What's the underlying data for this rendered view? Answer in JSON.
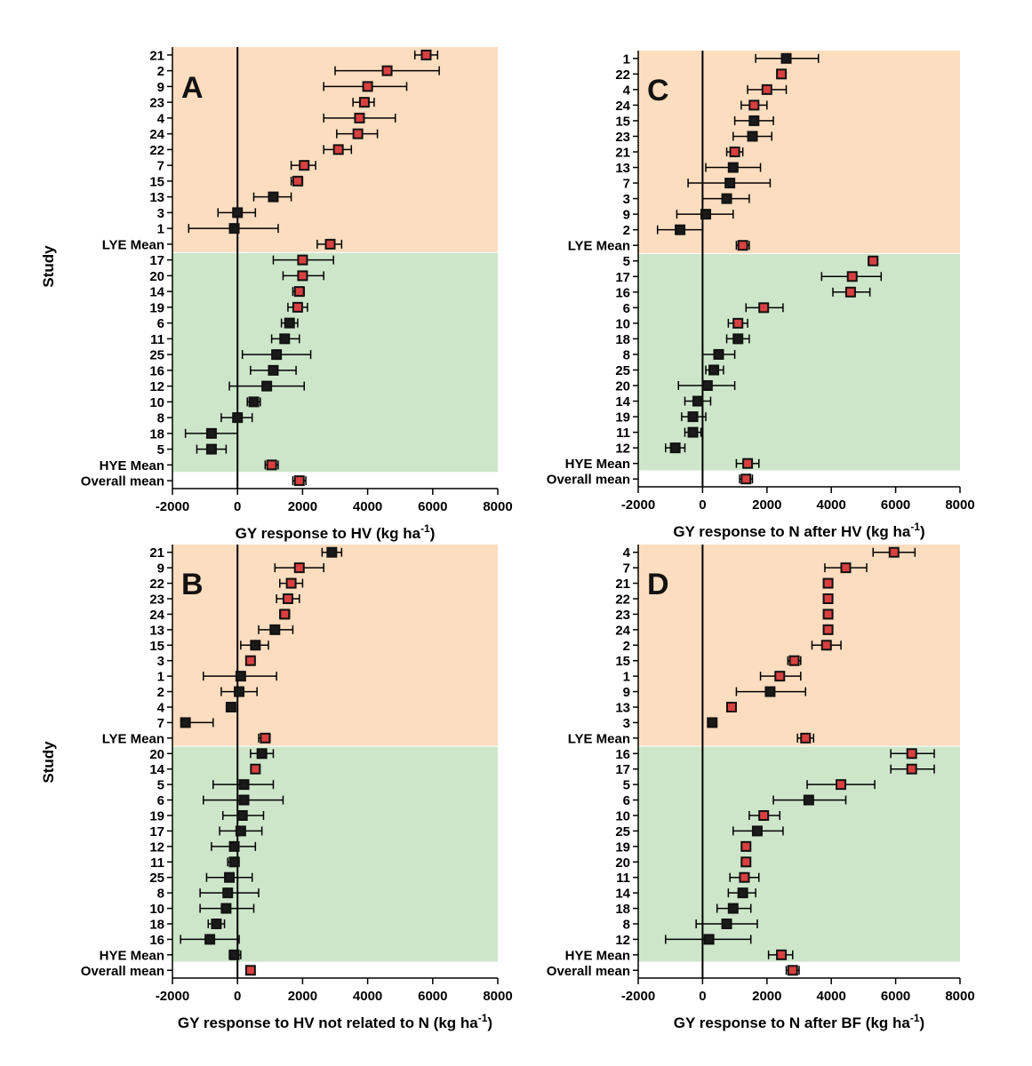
{
  "figure": {
    "y_axis_title": "Study"
  },
  "colors": {
    "lye_band": "#FCDDBF",
    "hye_band": "#CDE6CA",
    "marker_fill_red": "#D94040",
    "marker_fill_black": "#1A1A1A",
    "marker_edge": "#111111"
  },
  "chart_data": [
    {
      "id": "A",
      "type": "forest",
      "panel_label": "A",
      "xlabel": "GY response to HV (kg ha",
      "xlabel_sup": "-1",
      "xlabel_tail": ")",
      "xlim": [
        -2000,
        8000
      ],
      "xticks": [
        -2000,
        0,
        2000,
        4000,
        6000,
        8000
      ],
      "lye_rows": 13,
      "rows": [
        {
          "label": "21",
          "est": 5800,
          "lo": 5450,
          "hi": 6150,
          "marker": "red"
        },
        {
          "label": "2",
          "est": 4600,
          "lo": 3000,
          "hi": 6200,
          "marker": "red"
        },
        {
          "label": "9",
          "est": 4000,
          "lo": 2650,
          "hi": 5200,
          "marker": "red"
        },
        {
          "label": "23",
          "est": 3900,
          "lo": 3550,
          "hi": 4200,
          "marker": "red"
        },
        {
          "label": "4",
          "est": 3750,
          "lo": 2650,
          "hi": 4850,
          "marker": "red"
        },
        {
          "label": "24",
          "est": 3700,
          "lo": 3050,
          "hi": 4300,
          "marker": "red"
        },
        {
          "label": "22",
          "est": 3100,
          "lo": 2650,
          "hi": 3500,
          "marker": "red"
        },
        {
          "label": "7",
          "est": 2050,
          "lo": 1650,
          "hi": 2400,
          "marker": "red"
        },
        {
          "label": "15",
          "est": 1850,
          "lo": 1650,
          "hi": 2000,
          "marker": "red"
        },
        {
          "label": "13",
          "est": 1100,
          "lo": 500,
          "hi": 1650,
          "marker": "black"
        },
        {
          "label": "3",
          "est": 0,
          "lo": -600,
          "hi": 550,
          "marker": "black"
        },
        {
          "label": "1",
          "est": -100,
          "lo": -1500,
          "hi": 1250,
          "marker": "black"
        },
        {
          "label": "LYE Mean",
          "est": 2850,
          "lo": 2450,
          "hi": 3200,
          "marker": "red"
        },
        {
          "label": "17",
          "est": 2000,
          "lo": 1100,
          "hi": 2950,
          "marker": "red"
        },
        {
          "label": "20",
          "est": 2000,
          "lo": 1400,
          "hi": 2650,
          "marker": "red"
        },
        {
          "label": "14",
          "est": 1900,
          "lo": 1700,
          "hi": 2050,
          "marker": "red"
        },
        {
          "label": "19",
          "est": 1850,
          "lo": 1550,
          "hi": 2150,
          "marker": "red"
        },
        {
          "label": "6",
          "est": 1600,
          "lo": 1350,
          "hi": 1850,
          "marker": "black"
        },
        {
          "label": "11",
          "est": 1450,
          "lo": 1050,
          "hi": 1900,
          "marker": "black"
        },
        {
          "label": "25",
          "est": 1200,
          "lo": 150,
          "hi": 2250,
          "marker": "black"
        },
        {
          "label": "16",
          "est": 1100,
          "lo": 400,
          "hi": 1800,
          "marker": "black"
        },
        {
          "label": "12",
          "est": 900,
          "lo": -250,
          "hi": 2050,
          "marker": "black"
        },
        {
          "label": "10",
          "est": 500,
          "lo": 300,
          "hi": 700,
          "marker": "black"
        },
        {
          "label": "8",
          "est": 0,
          "lo": -500,
          "hi": 450,
          "marker": "black"
        },
        {
          "label": "18",
          "est": -800,
          "lo": -1600,
          "hi": 0,
          "marker": "black"
        },
        {
          "label": "5",
          "est": -800,
          "lo": -1250,
          "hi": -350,
          "marker": "black"
        },
        {
          "label": "HYE Mean",
          "est": 1050,
          "lo": 850,
          "hi": 1250,
          "marker": "red"
        },
        {
          "label": "Overall mean",
          "est": 1900,
          "lo": 1700,
          "hi": 2100,
          "marker": "red"
        }
      ]
    },
    {
      "id": "C",
      "type": "forest",
      "panel_label": "C",
      "xlabel": "GY response to N after HV (kg ha",
      "xlabel_sup": "-1",
      "xlabel_tail": ")",
      "xlim": [
        -2000,
        8000
      ],
      "xticks": [
        -2000,
        0,
        2000,
        4000,
        6000,
        8000
      ],
      "lye_rows": 13,
      "rows": [
        {
          "label": "1",
          "est": 2600,
          "lo": 1650,
          "hi": 3600,
          "marker": "black"
        },
        {
          "label": "22",
          "est": 2450,
          "lo": 2350,
          "hi": 2550,
          "marker": "red"
        },
        {
          "label": "4",
          "est": 2000,
          "lo": 1400,
          "hi": 2600,
          "marker": "red"
        },
        {
          "label": "24",
          "est": 1600,
          "lo": 1200,
          "hi": 2000,
          "marker": "red"
        },
        {
          "label": "15",
          "est": 1600,
          "lo": 1000,
          "hi": 2200,
          "marker": "black"
        },
        {
          "label": "23",
          "est": 1550,
          "lo": 950,
          "hi": 2150,
          "marker": "black"
        },
        {
          "label": "21",
          "est": 1000,
          "lo": 750,
          "hi": 1250,
          "marker": "red"
        },
        {
          "label": "13",
          "est": 950,
          "lo": 100,
          "hi": 1800,
          "marker": "black"
        },
        {
          "label": "7",
          "est": 850,
          "lo": -450,
          "hi": 2100,
          "marker": "black"
        },
        {
          "label": "3",
          "est": 750,
          "lo": 0,
          "hi": 1450,
          "marker": "black"
        },
        {
          "label": "9",
          "est": 100,
          "lo": -800,
          "hi": 950,
          "marker": "black"
        },
        {
          "label": "2",
          "est": -700,
          "lo": -1400,
          "hi": 0,
          "marker": "black"
        },
        {
          "label": "LYE Mean",
          "est": 1250,
          "lo": 1050,
          "hi": 1450,
          "marker": "red"
        },
        {
          "label": "5",
          "est": 5300,
          "lo": 5150,
          "hi": 5400,
          "marker": "red"
        },
        {
          "label": "17",
          "est": 4650,
          "lo": 3700,
          "hi": 5550,
          "marker": "red"
        },
        {
          "label": "16",
          "est": 4600,
          "lo": 4050,
          "hi": 5200,
          "marker": "red"
        },
        {
          "label": "6",
          "est": 1900,
          "lo": 1350,
          "hi": 2500,
          "marker": "red"
        },
        {
          "label": "10",
          "est": 1100,
          "lo": 800,
          "hi": 1400,
          "marker": "red"
        },
        {
          "label": "18",
          "est": 1100,
          "lo": 750,
          "hi": 1450,
          "marker": "black"
        },
        {
          "label": "8",
          "est": 500,
          "lo": 0,
          "hi": 1000,
          "marker": "black"
        },
        {
          "label": "25",
          "est": 350,
          "lo": 100,
          "hi": 650,
          "marker": "black"
        },
        {
          "label": "20",
          "est": 150,
          "lo": -750,
          "hi": 1000,
          "marker": "black"
        },
        {
          "label": "14",
          "est": -150,
          "lo": -550,
          "hi": 250,
          "marker": "black"
        },
        {
          "label": "19",
          "est": -300,
          "lo": -650,
          "hi": 100,
          "marker": "black"
        },
        {
          "label": "11",
          "est": -300,
          "lo": -550,
          "hi": -50,
          "marker": "black"
        },
        {
          "label": "12",
          "est": -850,
          "lo": -1150,
          "hi": -550,
          "marker": "black"
        },
        {
          "label": "HYE Mean",
          "est": 1400,
          "lo": 1050,
          "hi": 1750,
          "marker": "red"
        },
        {
          "label": "Overall mean",
          "est": 1350,
          "lo": 1150,
          "hi": 1550,
          "marker": "red"
        }
      ]
    },
    {
      "id": "B",
      "type": "forest",
      "panel_label": "B",
      "xlabel": "GY response to HV not related to N (kg ha",
      "xlabel_sup": "-1",
      "xlabel_tail": ")",
      "xlim": [
        -2000,
        8000
      ],
      "xticks": [
        -2000,
        0,
        2000,
        4000,
        6000,
        8000
      ],
      "lye_rows": 13,
      "rows": [
        {
          "label": "21",
          "est": 2900,
          "lo": 2600,
          "hi": 3200,
          "marker": "black"
        },
        {
          "label": "9",
          "est": 1900,
          "lo": 1150,
          "hi": 2650,
          "marker": "red"
        },
        {
          "label": "22",
          "est": 1650,
          "lo": 1300,
          "hi": 2000,
          "marker": "red"
        },
        {
          "label": "23",
          "est": 1550,
          "lo": 1200,
          "hi": 1900,
          "marker": "red"
        },
        {
          "label": "24",
          "est": 1450,
          "lo": 1300,
          "hi": 1600,
          "marker": "red"
        },
        {
          "label": "13",
          "est": 1150,
          "lo": 650,
          "hi": 1700,
          "marker": "black"
        },
        {
          "label": "15",
          "est": 550,
          "lo": 100,
          "hi": 950,
          "marker": "black"
        },
        {
          "label": "3",
          "est": 400,
          "lo": 300,
          "hi": 500,
          "marker": "red"
        },
        {
          "label": "1",
          "est": 100,
          "lo": -1050,
          "hi": 1200,
          "marker": "black"
        },
        {
          "label": "2",
          "est": 50,
          "lo": -500,
          "hi": 600,
          "marker": "black"
        },
        {
          "label": "4",
          "est": -200,
          "lo": -300,
          "hi": -100,
          "marker": "black"
        },
        {
          "label": "7",
          "est": -1600,
          "lo": -1700,
          "hi": -750,
          "marker": "black"
        },
        {
          "label": "LYE Mean",
          "est": 850,
          "lo": 650,
          "hi": 1000,
          "marker": "red"
        },
        {
          "label": "20",
          "est": 750,
          "lo": 400,
          "hi": 1100,
          "marker": "black"
        },
        {
          "label": "14",
          "est": 550,
          "lo": 450,
          "hi": 650,
          "marker": "red"
        },
        {
          "label": "5",
          "est": 200,
          "lo": -750,
          "hi": 1100,
          "marker": "black"
        },
        {
          "label": "6",
          "est": 200,
          "lo": -1050,
          "hi": 1400,
          "marker": "black"
        },
        {
          "label": "19",
          "est": 150,
          "lo": -450,
          "hi": 800,
          "marker": "black"
        },
        {
          "label": "17",
          "est": 100,
          "lo": -550,
          "hi": 750,
          "marker": "black"
        },
        {
          "label": "12",
          "est": -100,
          "lo": -800,
          "hi": 550,
          "marker": "black"
        },
        {
          "label": "11",
          "est": -100,
          "lo": -300,
          "hi": 50,
          "marker": "black"
        },
        {
          "label": "25",
          "est": -250,
          "lo": -950,
          "hi": 450,
          "marker": "black"
        },
        {
          "label": "8",
          "est": -300,
          "lo": -1150,
          "hi": 650,
          "marker": "black"
        },
        {
          "label": "10",
          "est": -350,
          "lo": -1150,
          "hi": 500,
          "marker": "black"
        },
        {
          "label": "18",
          "est": -650,
          "lo": -900,
          "hi": -400,
          "marker": "black"
        },
        {
          "label": "16",
          "est": -850,
          "lo": -1750,
          "hi": 50,
          "marker": "black"
        },
        {
          "label": "HYE Mean",
          "est": -100,
          "lo": -250,
          "hi": 100,
          "marker": "black"
        },
        {
          "label": "Overall mean",
          "est": 400,
          "lo": 300,
          "hi": 500,
          "marker": "red"
        }
      ]
    },
    {
      "id": "D",
      "type": "forest",
      "panel_label": "D",
      "xlabel": "GY response to N after BF (kg ha",
      "xlabel_sup": "-1",
      "xlabel_tail": ")",
      "xlim": [
        -2000,
        8000
      ],
      "xticks": [
        -2000,
        0,
        2000,
        4000,
        6000,
        8000
      ],
      "lye_rows": 13,
      "rows": [
        {
          "label": "4",
          "est": 5950,
          "lo": 5300,
          "hi": 6600,
          "marker": "red"
        },
        {
          "label": "7",
          "est": 4450,
          "lo": 3800,
          "hi": 5100,
          "marker": "red"
        },
        {
          "label": "21",
          "est": 3900,
          "lo": 3800,
          "hi": 4000,
          "marker": "red"
        },
        {
          "label": "22",
          "est": 3900,
          "lo": 3800,
          "hi": 4000,
          "marker": "red"
        },
        {
          "label": "23",
          "est": 3900,
          "lo": 3800,
          "hi": 4000,
          "marker": "red"
        },
        {
          "label": "24",
          "est": 3900,
          "lo": 3800,
          "hi": 4000,
          "marker": "red"
        },
        {
          "label": "2",
          "est": 3850,
          "lo": 3400,
          "hi": 4300,
          "marker": "red"
        },
        {
          "label": "15",
          "est": 2850,
          "lo": 2650,
          "hi": 3050,
          "marker": "red"
        },
        {
          "label": "1",
          "est": 2400,
          "lo": 1800,
          "hi": 3050,
          "marker": "red"
        },
        {
          "label": "9",
          "est": 2100,
          "lo": 1050,
          "hi": 3200,
          "marker": "black"
        },
        {
          "label": "13",
          "est": 900,
          "lo": 800,
          "hi": 1000,
          "marker": "red"
        },
        {
          "label": "3",
          "est": 300,
          "lo": 250,
          "hi": 350,
          "marker": "black"
        },
        {
          "label": "LYE Mean",
          "est": 3200,
          "lo": 2950,
          "hi": 3450,
          "marker": "red"
        },
        {
          "label": "16",
          "est": 6500,
          "lo": 5850,
          "hi": 7200,
          "marker": "red"
        },
        {
          "label": "17",
          "est": 6500,
          "lo": 5850,
          "hi": 7200,
          "marker": "red"
        },
        {
          "label": "5",
          "est": 4300,
          "lo": 3250,
          "hi": 5350,
          "marker": "red"
        },
        {
          "label": "6",
          "est": 3300,
          "lo": 2200,
          "hi": 4450,
          "marker": "black"
        },
        {
          "label": "10",
          "est": 1900,
          "lo": 1450,
          "hi": 2400,
          "marker": "red"
        },
        {
          "label": "25",
          "est": 1700,
          "lo": 950,
          "hi": 2500,
          "marker": "black"
        },
        {
          "label": "19",
          "est": 1350,
          "lo": 1250,
          "hi": 1450,
          "marker": "red"
        },
        {
          "label": "20",
          "est": 1350,
          "lo": 1250,
          "hi": 1450,
          "marker": "red"
        },
        {
          "label": "11",
          "est": 1300,
          "lo": 850,
          "hi": 1750,
          "marker": "red"
        },
        {
          "label": "14",
          "est": 1250,
          "lo": 800,
          "hi": 1650,
          "marker": "black"
        },
        {
          "label": "18",
          "est": 950,
          "lo": 450,
          "hi": 1500,
          "marker": "black"
        },
        {
          "label": "8",
          "est": 750,
          "lo": -200,
          "hi": 1700,
          "marker": "black"
        },
        {
          "label": "12",
          "est": 200,
          "lo": -1150,
          "hi": 1500,
          "marker": "black"
        },
        {
          "label": "HYE Mean",
          "est": 2450,
          "lo": 2050,
          "hi": 2800,
          "marker": "red"
        },
        {
          "label": "Overall mean",
          "est": 2800,
          "lo": 2600,
          "hi": 3000,
          "marker": "red"
        }
      ]
    }
  ]
}
